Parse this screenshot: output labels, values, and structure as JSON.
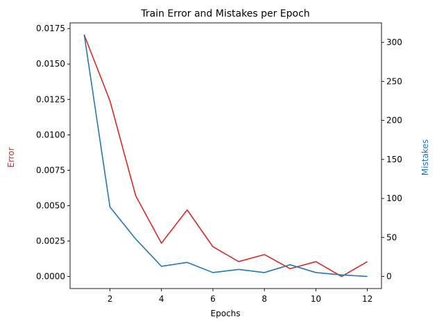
{
  "chart_data": {
    "type": "line",
    "title": "Train Error and Mistakes per Epoch",
    "xlabel": "Epochs",
    "xlim": [
      0.45,
      12.55
    ],
    "x": [
      1,
      2,
      3,
      4,
      5,
      6,
      7,
      8,
      9,
      10,
      11,
      12
    ],
    "x_ticks": [
      "2",
      "4",
      "6",
      "8",
      "10",
      "12"
    ],
    "x_tick_values": [
      2,
      4,
      6,
      8,
      10,
      12
    ],
    "y_left": {
      "label": "Error",
      "color": "#d62728",
      "lim": [
        -0.00085,
        0.0179
      ],
      "ticks": [
        "0.0000",
        "0.0025",
        "0.0050",
        "0.0075",
        "0.0100",
        "0.0125",
        "0.0150",
        "0.0175"
      ],
      "tick_values": [
        0,
        0.0025,
        0.005,
        0.0075,
        0.01,
        0.0125,
        0.015,
        0.0175
      ]
    },
    "y_right": {
      "label": "Mistakes",
      "color": "#1f77b4",
      "lim": [
        -15.5,
        325
      ],
      "ticks": [
        "0",
        "50",
        "100",
        "150",
        "200",
        "250",
        "300"
      ],
      "tick_values": [
        0,
        50,
        100,
        150,
        200,
        250,
        300
      ]
    },
    "series": [
      {
        "axis": "left",
        "color": "#d62728",
        "values": [
          0.01705,
          0.0124,
          0.0057,
          0.00235,
          0.0047,
          0.0021,
          0.00105,
          0.00155,
          0.00055,
          0.00105,
          0.0,
          0.00105
        ]
      },
      {
        "axis": "right",
        "color": "#1f77b4",
        "values": [
          310,
          89,
          48,
          13,
          18,
          5,
          9,
          5,
          15,
          5,
          2,
          0
        ]
      }
    ],
    "grid": false,
    "legend": "none"
  }
}
